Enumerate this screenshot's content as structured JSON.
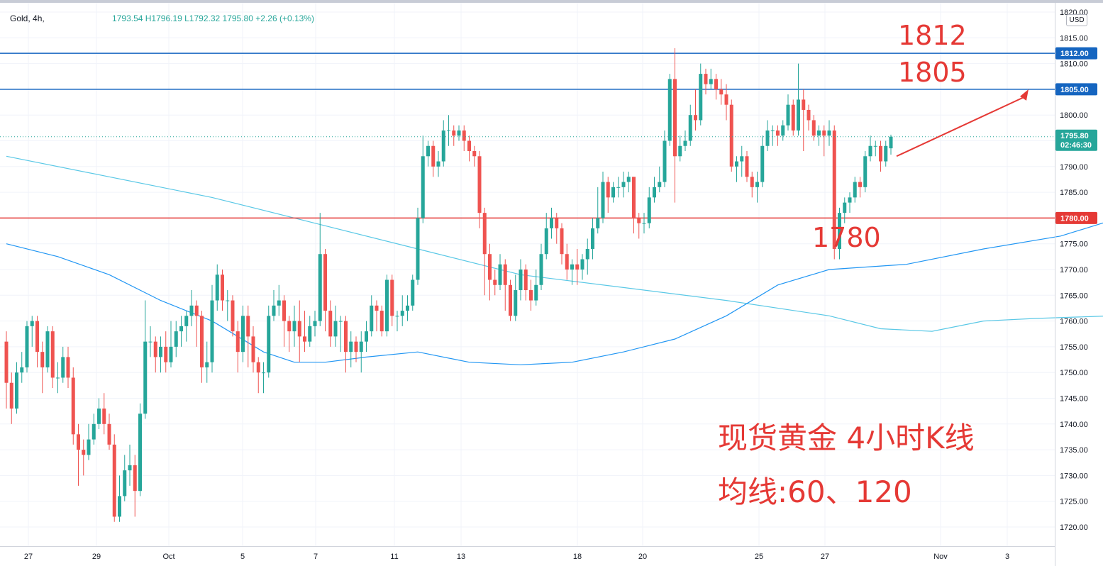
{
  "header": {
    "symbol": "Gold, 4h,",
    "ohlc": "1793.54 H1796.19 L1792.32 1795.80",
    "change": "+2.26 (+0.13%)",
    "unit": "USD"
  },
  "annotations": {
    "level_1812": "1812",
    "level_1805": "1805",
    "level_1780": "1780",
    "caption_line1": "现货黄金 4小时K线",
    "caption_line2": "均线:60、120"
  },
  "colors": {
    "up": "#26a69a",
    "down": "#ef5350",
    "resistance": "#1565c0",
    "support": "#e53935",
    "ma60": "#2196f3",
    "ma120": "#5ac8e6",
    "annotation": "#e53935"
  },
  "chart_data": {
    "type": "candlestick",
    "ylim": [
      1717,
      1821
    ],
    "y_ticks": [
      1720,
      1725,
      1730,
      1735,
      1740,
      1745,
      1750,
      1755,
      1760,
      1765,
      1770,
      1775,
      1780,
      1785,
      1790,
      1795,
      1800,
      1805,
      1810,
      1815,
      1820
    ],
    "x_tick_labels": [
      "27",
      "29",
      "Oct",
      "5",
      "7",
      "11",
      "13",
      "18",
      "20",
      "25",
      "27",
      "Nov",
      "3"
    ],
    "last_price": "1795.80",
    "countdown": "02:46:30",
    "horizontal_lines": [
      {
        "value": 1812,
        "label": "1812.00",
        "color": "#1565c0"
      },
      {
        "value": 1805,
        "label": "1805.00",
        "color": "#1565c0"
      },
      {
        "value": 1780,
        "label": "1780.00",
        "color": "#e53935"
      }
    ],
    "candles": [
      [
        1756.0,
        1748.0,
        1743.0,
        1758.0
      ],
      [
        1748.0,
        1743.0,
        1740.0,
        1750.0
      ],
      [
        1743.0,
        1750.0,
        1742.0,
        1752.0
      ],
      [
        1750.0,
        1751.0,
        1748.0,
        1754.0
      ],
      [
        1751.0,
        1759.0,
        1750.0,
        1760.0
      ],
      [
        1759.0,
        1760.0,
        1755.0,
        1761.0
      ],
      [
        1760.0,
        1754.0,
        1751.0,
        1761.0
      ],
      [
        1754.0,
        1751.0,
        1746.0,
        1756.0
      ],
      [
        1751.0,
        1758.0,
        1750.0,
        1759.0
      ],
      [
        1758.0,
        1749.0,
        1747.0,
        1759.0
      ],
      [
        1749.0,
        1749.0,
        1746.0,
        1752.0
      ],
      [
        1749.0,
        1753.0,
        1748.0,
        1755.0
      ],
      [
        1753.0,
        1749.0,
        1747.0,
        1755.0
      ],
      [
        1749.0,
        1738.0,
        1736.0,
        1751.0
      ],
      [
        1738.0,
        1735.0,
        1728.0,
        1740.0
      ],
      [
        1735.0,
        1734.0,
        1730.0,
        1737.0
      ],
      [
        1734.0,
        1737.0,
        1733.0,
        1740.0
      ],
      [
        1737.0,
        1740.0,
        1736.0,
        1742.0
      ],
      [
        1740.0,
        1743.0,
        1739.0,
        1745.0
      ],
      [
        1743.0,
        1740.0,
        1738.0,
        1746.0
      ],
      [
        1740.0,
        1736.0,
        1735.0,
        1742.0
      ],
      [
        1736.0,
        1722.0,
        1721.0,
        1738.0
      ],
      [
        1722.0,
        1726.0,
        1721.0,
        1730.0
      ],
      [
        1726.0,
        1731.0,
        1725.0,
        1734.0
      ],
      [
        1731.0,
        1732.0,
        1728.0,
        1736.0
      ],
      [
        1732.0,
        1727.0,
        1722.0,
        1734.0
      ],
      [
        1727.0,
        1742.0,
        1726.0,
        1744.0
      ],
      [
        1742.0,
        1756.0,
        1741.0,
        1764.0
      ],
      [
        1756.0,
        1756.0,
        1753.0,
        1759.0
      ],
      [
        1756.0,
        1753.0,
        1750.0,
        1757.0
      ],
      [
        1753.0,
        1755.0,
        1750.0,
        1757.0
      ],
      [
        1755.0,
        1752.0,
        1750.0,
        1758.0
      ],
      [
        1752.0,
        1755.0,
        1751.0,
        1760.0
      ],
      [
        1755.0,
        1758.0,
        1753.0,
        1760.0
      ],
      [
        1758.0,
        1759.0,
        1755.0,
        1761.0
      ],
      [
        1759.0,
        1761.0,
        1756.0,
        1762.0
      ],
      [
        1761.0,
        1763.0,
        1759.0,
        1766.0
      ],
      [
        1763.0,
        1761.0,
        1755.0,
        1764.0
      ],
      [
        1761.0,
        1751.0,
        1748.0,
        1762.0
      ],
      [
        1751.0,
        1752.0,
        1748.0,
        1756.0
      ],
      [
        1752.0,
        1764.0,
        1750.0,
        1767.0
      ],
      [
        1764.0,
        1769.0,
        1762.0,
        1771.0
      ],
      [
        1769.0,
        1764.0,
        1762.0,
        1770.0
      ],
      [
        1764.0,
        1764.0,
        1760.0,
        1766.0
      ],
      [
        1764.0,
        1758.0,
        1757.0,
        1765.0
      ],
      [
        1758.0,
        1754.0,
        1750.0,
        1760.0
      ],
      [
        1754.0,
        1761.0,
        1752.0,
        1763.0
      ],
      [
        1761.0,
        1757.0,
        1751.0,
        1763.0
      ],
      [
        1757.0,
        1752.0,
        1750.0,
        1759.0
      ],
      [
        1752.0,
        1750.0,
        1746.0,
        1753.0
      ],
      [
        1750.0,
        1750.0,
        1746.0,
        1752.0
      ],
      [
        1750.0,
        1761.0,
        1749.0,
        1763.0
      ],
      [
        1761.0,
        1763.0,
        1760.0,
        1766.0
      ],
      [
        1763.0,
        1764.0,
        1761.0,
        1767.0
      ],
      [
        1764.0,
        1760.0,
        1755.0,
        1765.0
      ],
      [
        1760.0,
        1758.0,
        1754.0,
        1761.0
      ],
      [
        1758.0,
        1760.0,
        1755.0,
        1763.0
      ],
      [
        1760.0,
        1757.0,
        1752.0,
        1764.0
      ],
      [
        1757.0,
        1756.0,
        1754.0,
        1762.0
      ],
      [
        1756.0,
        1759.0,
        1755.0,
        1761.0
      ],
      [
        1759.0,
        1760.0,
        1757.0,
        1762.0
      ],
      [
        1760.0,
        1773.0,
        1759.0,
        1781.0
      ],
      [
        1773.0,
        1762.0,
        1758.0,
        1774.0
      ],
      [
        1762.0,
        1757.0,
        1755.0,
        1764.0
      ],
      [
        1757.0,
        1760.0,
        1755.0,
        1763.0
      ],
      [
        1760.0,
        1760.0,
        1754.0,
        1761.0
      ],
      [
        1760.0,
        1754.0,
        1750.0,
        1761.0
      ],
      [
        1754.0,
        1756.0,
        1751.0,
        1758.0
      ],
      [
        1756.0,
        1754.0,
        1752.0,
        1757.0
      ],
      [
        1754.0,
        1756.0,
        1750.0,
        1758.0
      ],
      [
        1756.0,
        1758.0,
        1754.0,
        1760.0
      ],
      [
        1758.0,
        1763.0,
        1757.0,
        1765.0
      ],
      [
        1763.0,
        1762.0,
        1758.0,
        1764.0
      ],
      [
        1762.0,
        1758.0,
        1757.0,
        1763.0
      ],
      [
        1758.0,
        1768.0,
        1757.0,
        1769.0
      ],
      [
        1768.0,
        1761.0,
        1759.0,
        1769.0
      ],
      [
        1761.0,
        1761.0,
        1758.0,
        1762.0
      ],
      [
        1761.0,
        1762.0,
        1759.0,
        1765.0
      ],
      [
        1762.0,
        1763.0,
        1760.0,
        1765.0
      ],
      [
        1763.0,
        1768.0,
        1762.0,
        1769.0
      ],
      [
        1768.0,
        1780.0,
        1767.0,
        1782.0
      ],
      [
        1780.0,
        1792.0,
        1779.0,
        1796.0
      ],
      [
        1792.0,
        1794.0,
        1790.0,
        1795.0
      ],
      [
        1794.0,
        1790.0,
        1788.0,
        1795.0
      ],
      [
        1790.0,
        1791.0,
        1788.0,
        1793.0
      ],
      [
        1791.0,
        1797.0,
        1790.0,
        1799.0
      ],
      [
        1797.0,
        1797.0,
        1794.0,
        1800.0
      ],
      [
        1797.0,
        1796.0,
        1794.0,
        1798.0
      ],
      [
        1796.0,
        1797.0,
        1795.0,
        1798.0
      ],
      [
        1797.0,
        1795.0,
        1793.0,
        1798.0
      ],
      [
        1795.0,
        1793.0,
        1791.0,
        1796.0
      ],
      [
        1793.0,
        1792.0,
        1790.0,
        1794.0
      ],
      [
        1792.0,
        1781.0,
        1778.0,
        1793.0
      ],
      [
        1781.0,
        1773.0,
        1765.0,
        1782.0
      ],
      [
        1773.0,
        1768.0,
        1764.0,
        1775.0
      ],
      [
        1768.0,
        1767.0,
        1765.0,
        1770.0
      ],
      [
        1767.0,
        1771.0,
        1766.0,
        1773.0
      ],
      [
        1771.0,
        1767.0,
        1762.0,
        1772.0
      ],
      [
        1767.0,
        1761.0,
        1760.0,
        1768.0
      ],
      [
        1761.0,
        1766.0,
        1760.0,
        1769.0
      ],
      [
        1766.0,
        1770.0,
        1764.0,
        1772.0
      ],
      [
        1770.0,
        1766.0,
        1764.0,
        1771.0
      ],
      [
        1766.0,
        1764.0,
        1762.0,
        1768.0
      ],
      [
        1764.0,
        1767.0,
        1763.0,
        1770.0
      ],
      [
        1767.0,
        1773.0,
        1766.0,
        1775.0
      ],
      [
        1773.0,
        1778.0,
        1772.0,
        1781.0
      ],
      [
        1778.0,
        1780.0,
        1776.0,
        1782.0
      ],
      [
        1780.0,
        1778.0,
        1775.0,
        1781.0
      ],
      [
        1778.0,
        1773.0,
        1771.0,
        1779.0
      ],
      [
        1773.0,
        1770.0,
        1768.0,
        1775.0
      ],
      [
        1770.0,
        1771.0,
        1767.0,
        1772.0
      ],
      [
        1771.0,
        1770.0,
        1767.0,
        1774.0
      ],
      [
        1770.0,
        1772.0,
        1768.0,
        1773.0
      ],
      [
        1772.0,
        1774.0,
        1769.0,
        1776.0
      ],
      [
        1774.0,
        1778.0,
        1772.0,
        1780.0
      ],
      [
        1778.0,
        1780.0,
        1777.0,
        1786.0
      ],
      [
        1780.0,
        1787.0,
        1779.0,
        1789.0
      ],
      [
        1787.0,
        1784.0,
        1781.0,
        1788.0
      ],
      [
        1784.0,
        1786.0,
        1783.0,
        1787.0
      ],
      [
        1786.0,
        1786.0,
        1784.0,
        1788.0
      ],
      [
        1786.0,
        1787.0,
        1784.0,
        1789.0
      ],
      [
        1787.0,
        1788.0,
        1785.0,
        1789.0
      ],
      [
        1788.0,
        1780.0,
        1777.0,
        1788.0
      ],
      [
        1780.0,
        1779.0,
        1776.0,
        1781.0
      ],
      [
        1779.0,
        1779.0,
        1777.0,
        1781.0
      ],
      [
        1779.0,
        1784.0,
        1778.0,
        1786.0
      ],
      [
        1784.0,
        1786.0,
        1783.0,
        1788.0
      ],
      [
        1786.0,
        1787.0,
        1785.0,
        1790.0
      ],
      [
        1787.0,
        1795.0,
        1786.0,
        1797.0
      ],
      [
        1795.0,
        1807.0,
        1794.0,
        1808.0
      ],
      [
        1807.0,
        1792.0,
        1783.0,
        1813.0
      ],
      [
        1792.0,
        1794.0,
        1791.0,
        1796.0
      ],
      [
        1794.0,
        1795.0,
        1793.0,
        1797.0
      ],
      [
        1795.0,
        1800.0,
        1794.0,
        1802.0
      ],
      [
        1800.0,
        1799.0,
        1797.0,
        1805.0
      ],
      [
        1799.0,
        1808.0,
        1798.0,
        1810.0
      ],
      [
        1808.0,
        1806.0,
        1804.0,
        1809.0
      ],
      [
        1806.0,
        1807.0,
        1805.0,
        1809.0
      ],
      [
        1807.0,
        1805.0,
        1803.0,
        1808.0
      ],
      [
        1805.0,
        1804.0,
        1802.0,
        1807.0
      ],
      [
        1804.0,
        1802.0,
        1799.0,
        1806.0
      ],
      [
        1802.0,
        1790.0,
        1789.0,
        1803.0
      ],
      [
        1790.0,
        1791.0,
        1787.0,
        1792.0
      ],
      [
        1791.0,
        1792.0,
        1788.0,
        1794.0
      ],
      [
        1792.0,
        1788.0,
        1787.0,
        1793.0
      ],
      [
        1788.0,
        1786.0,
        1784.0,
        1789.0
      ],
      [
        1786.0,
        1787.0,
        1783.0,
        1789.0
      ],
      [
        1787.0,
        1794.0,
        1786.0,
        1796.0
      ],
      [
        1794.0,
        1797.0,
        1793.0,
        1799.0
      ],
      [
        1797.0,
        1797.0,
        1794.0,
        1798.0
      ],
      [
        1797.0,
        1796.0,
        1794.0,
        1798.0
      ],
      [
        1796.0,
        1798.0,
        1795.0,
        1799.0
      ],
      [
        1798.0,
        1802.0,
        1797.0,
        1804.0
      ],
      [
        1802.0,
        1797.0,
        1796.0,
        1803.0
      ],
      [
        1797.0,
        1803.0,
        1796.0,
        1810.0
      ],
      [
        1803.0,
        1801.0,
        1793.0,
        1805.0
      ],
      [
        1801.0,
        1799.0,
        1797.0,
        1802.0
      ],
      [
        1799.0,
        1796.0,
        1795.0,
        1800.0
      ],
      [
        1796.0,
        1797.0,
        1794.0,
        1798.0
      ],
      [
        1797.0,
        1796.0,
        1792.0,
        1798.0
      ],
      [
        1796.0,
        1797.0,
        1794.0,
        1799.0
      ],
      [
        1797.0,
        1774.0,
        1772.0,
        1798.0
      ],
      [
        1774.0,
        1781.0,
        1772.0,
        1782.0
      ],
      [
        1781.0,
        1783.0,
        1779.0,
        1784.0
      ],
      [
        1783.0,
        1784.0,
        1781.0,
        1785.0
      ],
      [
        1784.0,
        1787.0,
        1783.0,
        1788.0
      ],
      [
        1787.0,
        1786.0,
        1784.0,
        1788.0
      ],
      [
        1786.0,
        1792.0,
        1785.0,
        1793.0
      ],
      [
        1792.0,
        1794.0,
        1791.0,
        1796.0
      ],
      [
        1794.0,
        1794.0,
        1792.0,
        1795.0
      ],
      [
        1794.0,
        1791.0,
        1789.0,
        1795.0
      ],
      [
        1791.0,
        1794.0,
        1790.0,
        1795.0
      ],
      [
        1793.54,
        1795.8,
        1792.32,
        1796.19
      ]
    ],
    "ma60": [
      [
        0,
        1775.0
      ],
      [
        10,
        1772.5
      ],
      [
        20,
        1769.0
      ],
      [
        30,
        1764.0
      ],
      [
        40,
        1760.0
      ],
      [
        50,
        1754.0
      ],
      [
        56,
        1752.0
      ],
      [
        62,
        1752.0
      ],
      [
        70,
        1753.0
      ],
      [
        80,
        1754.0
      ],
      [
        90,
        1752.0
      ],
      [
        100,
        1751.5
      ],
      [
        110,
        1752.0
      ],
      [
        120,
        1754.0
      ],
      [
        130,
        1756.5
      ],
      [
        140,
        1761.0
      ],
      [
        150,
        1767.0
      ],
      [
        160,
        1770.0
      ],
      [
        175,
        1771.0
      ],
      [
        190,
        1774.0
      ],
      [
        205,
        1776.5
      ],
      [
        218,
        1780.5
      ],
      [
        230,
        1785.0
      ],
      [
        240,
        1786.5
      ],
      [
        250,
        1787.0
      ],
      [
        260,
        1788.0
      ],
      [
        280,
        1790.5
      ]
    ],
    "ma120": [
      [
        0,
        1792.0
      ],
      [
        20,
        1788.0
      ],
      [
        40,
        1784.0
      ],
      [
        60,
        1779.0
      ],
      [
        80,
        1774.0
      ],
      [
        100,
        1769.0
      ],
      [
        120,
        1766.5
      ],
      [
        140,
        1764.0
      ],
      [
        160,
        1761.0
      ],
      [
        170,
        1758.5
      ],
      [
        180,
        1758.0
      ],
      [
        190,
        1760.0
      ],
      [
        200,
        1760.5
      ],
      [
        215,
        1761.0
      ],
      [
        230,
        1761.0
      ],
      [
        245,
        1762.5
      ],
      [
        260,
        1765.0
      ],
      [
        275,
        1769.0
      ],
      [
        290,
        1772.0
      ],
      [
        305,
        1776.0
      ],
      [
        320,
        1778.0
      ],
      [
        335,
        1779.0
      ]
    ]
  }
}
